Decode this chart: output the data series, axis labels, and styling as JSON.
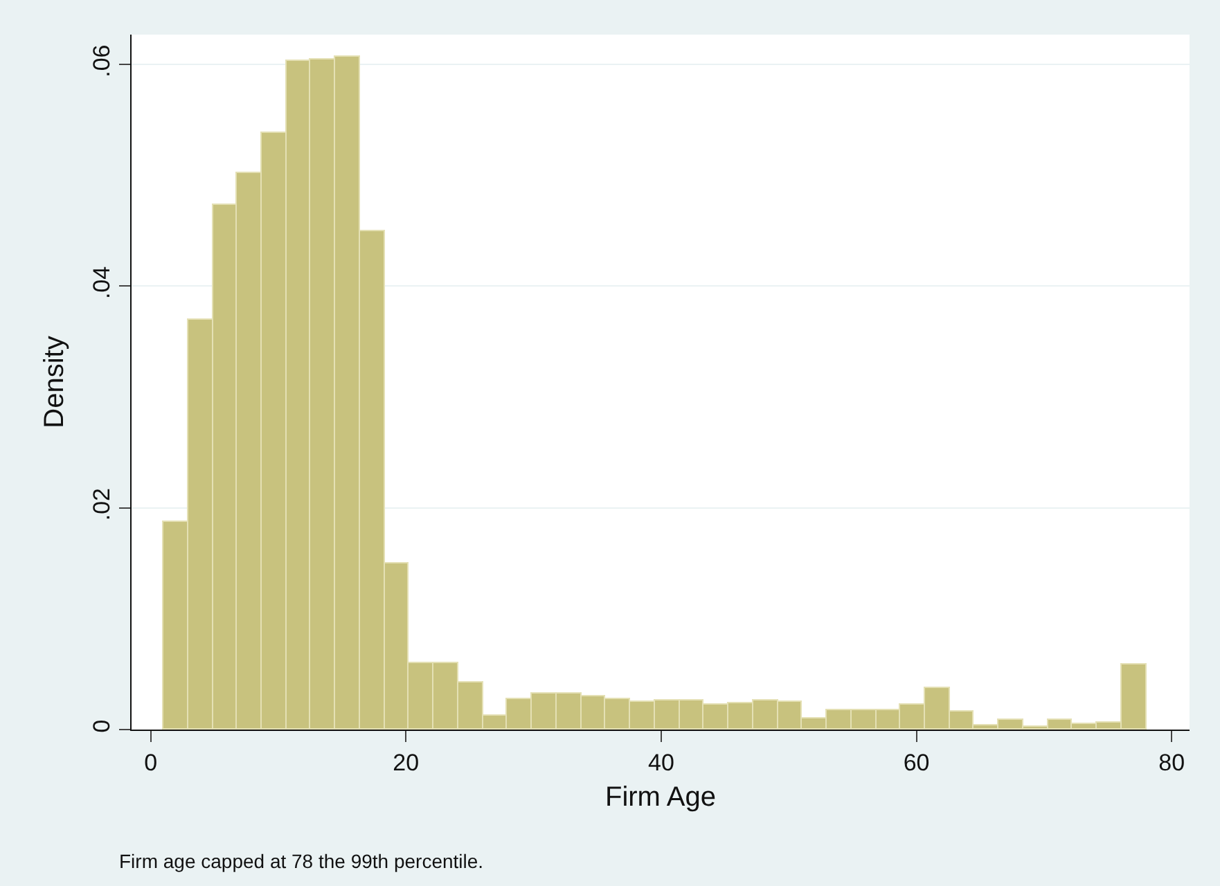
{
  "chart_data": {
    "type": "histogram",
    "xlabel": "Firm Age",
    "ylabel": "Density",
    "bins": [
      1,
      2.925,
      4.85,
      6.775,
      8.7,
      10.625,
      12.55,
      14.475,
      16.4,
      18.325,
      20.25,
      22.175,
      24.1,
      26.025,
      27.95,
      29.875,
      31.8,
      33.725,
      35.65,
      37.575,
      39.5,
      41.425,
      43.35,
      45.275,
      47.2,
      49.125,
      51.05,
      52.975,
      54.9,
      56.825,
      58.75,
      60.675,
      62.6,
      64.525,
      66.45,
      68.375,
      70.3,
      72.225,
      74.15,
      76.075,
      78
    ],
    "values": [
      0.0187,
      0.037,
      0.0474,
      0.0502,
      0.0538,
      0.0603,
      0.0605,
      0.0607,
      0.045,
      0.015,
      0.006,
      0.006,
      0.0043,
      0.0013,
      0.0028,
      0.0032,
      0.0032,
      0.003,
      0.0028,
      0.0025,
      0.0026,
      0.0026,
      0.0022,
      0.0024,
      0.0026,
      0.0025,
      0.001,
      0.0018,
      0.0018,
      0.0018,
      0.0022,
      0.0038,
      0.0016,
      0.0004,
      0.0009,
      0.0002,
      0.0009,
      0.0005,
      0.0006,
      0.0059
    ],
    "color": "#c8c27e",
    "xlim": [
      -1.5,
      81.4
    ],
    "xticks": [
      0,
      20,
      40,
      60,
      80
    ],
    "ylim": [
      0,
      0.0627
    ],
    "yticks": [
      {
        "value": 0,
        "label": "0"
      },
      {
        "value": 0.02,
        "label": ".02"
      },
      {
        "value": 0.04,
        "label": ".04"
      },
      {
        "value": 0.06,
        "label": ".06"
      }
    ],
    "grid": "y",
    "annotations": [
      "Firm age capped at 78 the 99th percentile."
    ]
  }
}
